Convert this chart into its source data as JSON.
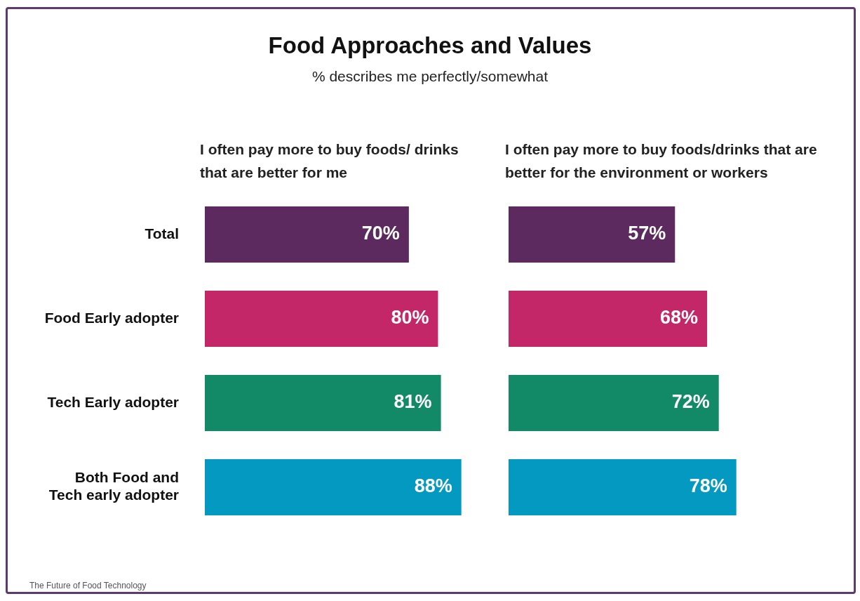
{
  "chart_data": [
    {
      "type": "bar",
      "orientation": "horizontal",
      "title": "Food Approaches and Values",
      "subtitle": "% describes me perfectly/somewhat",
      "x2label": "I often pay more to buy foods/ drinks that are better for me",
      "categories": [
        "Total",
        "Food Early adopter",
        "Tech Early adopter",
        "Both Food and Tech early adopter"
      ],
      "values": [
        70,
        80,
        81,
        88
      ],
      "value_labels": [
        "70%",
        "80%",
        "81%",
        "88%"
      ],
      "colors": [
        "#5c2a5f",
        "#c42767",
        "#128a68",
        "#0399c0"
      ],
      "tick_labels": "y",
      "annotations": [
        "The Future of Food Technology"
      ]
    },
    {
      "type": "bar",
      "orientation": "horizontal",
      "x2label": "I often pay more to buy foods/drinks that are better for the environment or workers",
      "categories": [
        null,
        null,
        null,
        null
      ],
      "values": [
        57,
        68,
        72,
        78
      ],
      "value_labels": [
        "57%",
        "68%",
        "72%",
        "78%"
      ],
      "colors": [
        "#5c2a5f",
        "#c42767",
        "#128a68",
        "#0399c0"
      ],
      "tick_labels": false
    }
  ]
}
